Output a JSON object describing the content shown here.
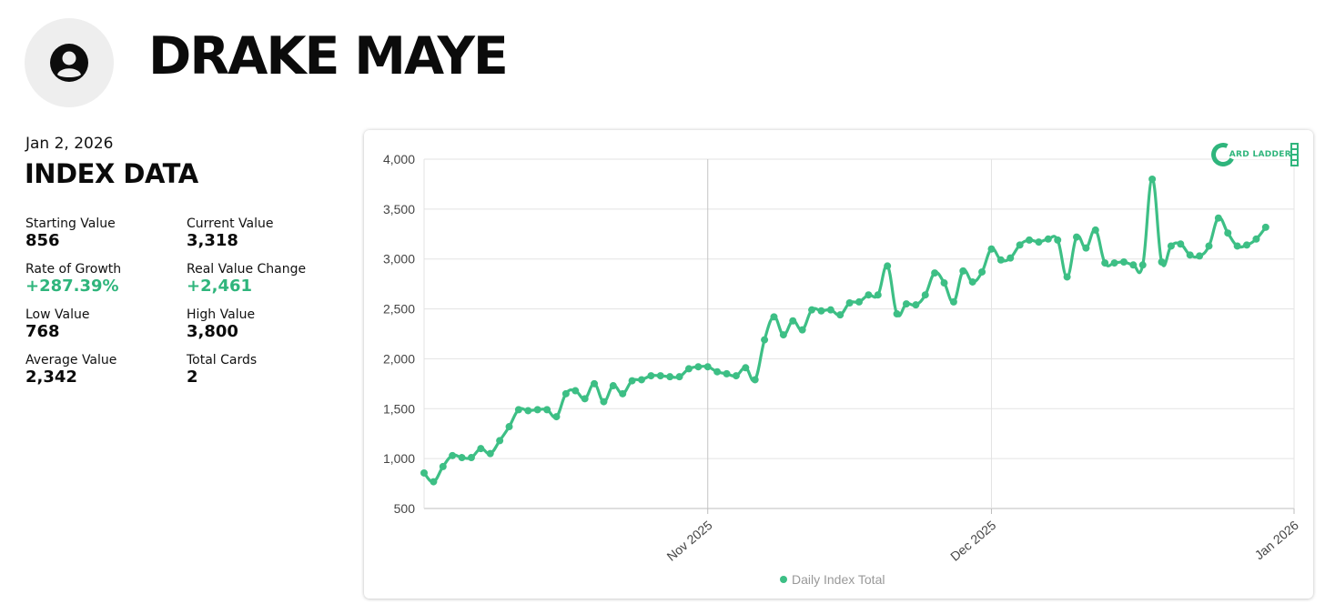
{
  "player": {
    "name": "DRAKE MAYE",
    "avatar_icon": "user-circle-icon"
  },
  "index": {
    "date": "Jan 2, 2026",
    "title": "INDEX DATA",
    "stats": [
      {
        "label": "Starting Value",
        "value": "856",
        "positive": false
      },
      {
        "label": "Current Value",
        "value": "3,318",
        "positive": false
      },
      {
        "label": "Rate of Growth",
        "value": "+287.39%",
        "positive": true
      },
      {
        "label": "Real Value Change",
        "value": "+2,461",
        "positive": true
      },
      {
        "label": "Low Value",
        "value": "768",
        "positive": false
      },
      {
        "label": "High Value",
        "value": "3,800",
        "positive": false
      },
      {
        "label": "Average Value",
        "value": "2,342",
        "positive": false
      },
      {
        "label": "Total Cards",
        "value": "2",
        "positive": false
      }
    ]
  },
  "logo": {
    "text": "CARD LADDER",
    "visible_text": "ARD LADDER"
  },
  "chart_data": {
    "type": "line",
    "title": "",
    "xlabel": "",
    "ylabel": "",
    "ylim": [
      500,
      4000
    ],
    "y_ticks": [
      500,
      1000,
      1500,
      2000,
      2500,
      3000,
      3500,
      4000
    ],
    "y_tick_labels": [
      "500",
      "1,000",
      "1,500",
      "2,000",
      "2,500",
      "3,000",
      "3,500",
      "4,000"
    ],
    "x_range": [
      "2025-10-02",
      "2026-01-02"
    ],
    "x_ticks": [
      {
        "date": "2025-11-01",
        "label": "Nov 2025"
      },
      {
        "date": "2025-12-01",
        "label": "Dec 2025"
      },
      {
        "date": "2026-01-02",
        "label": "Jan 2026"
      }
    ],
    "grid": true,
    "legend": {
      "placement": "bottom",
      "entries": [
        "Daily Index Total"
      ]
    },
    "color": "#3dbf85",
    "series": [
      {
        "name": "Daily Index Total",
        "points": [
          [
            "2025-10-02",
            856
          ],
          [
            "2025-10-03",
            768
          ],
          [
            "2025-10-04",
            920
          ],
          [
            "2025-10-05",
            1030
          ],
          [
            "2025-10-06",
            1010
          ],
          [
            "2025-10-07",
            1010
          ],
          [
            "2025-10-08",
            1100
          ],
          [
            "2025-10-09",
            1050
          ],
          [
            "2025-10-10",
            1180
          ],
          [
            "2025-10-11",
            1320
          ],
          [
            "2025-10-12",
            1490
          ],
          [
            "2025-10-13",
            1480
          ],
          [
            "2025-10-14",
            1490
          ],
          [
            "2025-10-15",
            1490
          ],
          [
            "2025-10-16",
            1420
          ],
          [
            "2025-10-17",
            1650
          ],
          [
            "2025-10-18",
            1680
          ],
          [
            "2025-10-19",
            1600
          ],
          [
            "2025-10-20",
            1750
          ],
          [
            "2025-10-21",
            1570
          ],
          [
            "2025-10-22",
            1730
          ],
          [
            "2025-10-23",
            1650
          ],
          [
            "2025-10-24",
            1780
          ],
          [
            "2025-10-25",
            1790
          ],
          [
            "2025-10-26",
            1830
          ],
          [
            "2025-10-27",
            1830
          ],
          [
            "2025-10-28",
            1820
          ],
          [
            "2025-10-29",
            1820
          ],
          [
            "2025-10-30",
            1900
          ],
          [
            "2025-10-31",
            1920
          ],
          [
            "2025-11-01",
            1920
          ],
          [
            "2025-11-02",
            1870
          ],
          [
            "2025-11-03",
            1850
          ],
          [
            "2025-11-04",
            1830
          ],
          [
            "2025-11-05",
            1910
          ],
          [
            "2025-11-06",
            1790
          ],
          [
            "2025-11-07",
            2190
          ],
          [
            "2025-11-08",
            2420
          ],
          [
            "2025-11-09",
            2240
          ],
          [
            "2025-11-10",
            2380
          ],
          [
            "2025-11-11",
            2290
          ],
          [
            "2025-11-12",
            2490
          ],
          [
            "2025-11-13",
            2480
          ],
          [
            "2025-11-14",
            2490
          ],
          [
            "2025-11-15",
            2440
          ],
          [
            "2025-11-16",
            2560
          ],
          [
            "2025-11-17",
            2570
          ],
          [
            "2025-11-18",
            2640
          ],
          [
            "2025-11-19",
            2640
          ],
          [
            "2025-11-20",
            2930
          ],
          [
            "2025-11-21",
            2450
          ],
          [
            "2025-11-22",
            2550
          ],
          [
            "2025-11-23",
            2540
          ],
          [
            "2025-11-24",
            2640
          ],
          [
            "2025-11-25",
            2860
          ],
          [
            "2025-11-26",
            2760
          ],
          [
            "2025-11-27",
            2570
          ],
          [
            "2025-11-28",
            2880
          ],
          [
            "2025-11-29",
            2770
          ],
          [
            "2025-11-30",
            2870
          ],
          [
            "2025-12-01",
            3100
          ],
          [
            "2025-12-02",
            2990
          ],
          [
            "2025-12-03",
            3010
          ],
          [
            "2025-12-04",
            3140
          ],
          [
            "2025-12-05",
            3190
          ],
          [
            "2025-12-06",
            3170
          ],
          [
            "2025-12-07",
            3200
          ],
          [
            "2025-12-08",
            3190
          ],
          [
            "2025-12-09",
            2820
          ],
          [
            "2025-12-10",
            3220
          ],
          [
            "2025-12-11",
            3110
          ],
          [
            "2025-12-12",
            3290
          ],
          [
            "2025-12-13",
            2960
          ],
          [
            "2025-12-14",
            2960
          ],
          [
            "2025-12-15",
            2970
          ],
          [
            "2025-12-16",
            2940
          ],
          [
            "2025-12-17",
            2940
          ],
          [
            "2025-12-18",
            3800
          ],
          [
            "2025-12-19",
            2970
          ],
          [
            "2025-12-20",
            3130
          ],
          [
            "2025-12-21",
            3150
          ],
          [
            "2025-12-22",
            3040
          ],
          [
            "2025-12-23",
            3030
          ],
          [
            "2025-12-24",
            3130
          ],
          [
            "2025-12-25",
            3410
          ],
          [
            "2025-12-26",
            3260
          ],
          [
            "2025-12-27",
            3130
          ],
          [
            "2025-12-28",
            3140
          ],
          [
            "2025-12-29",
            3200
          ],
          [
            "2025-12-30",
            3318
          ]
        ]
      }
    ]
  }
}
